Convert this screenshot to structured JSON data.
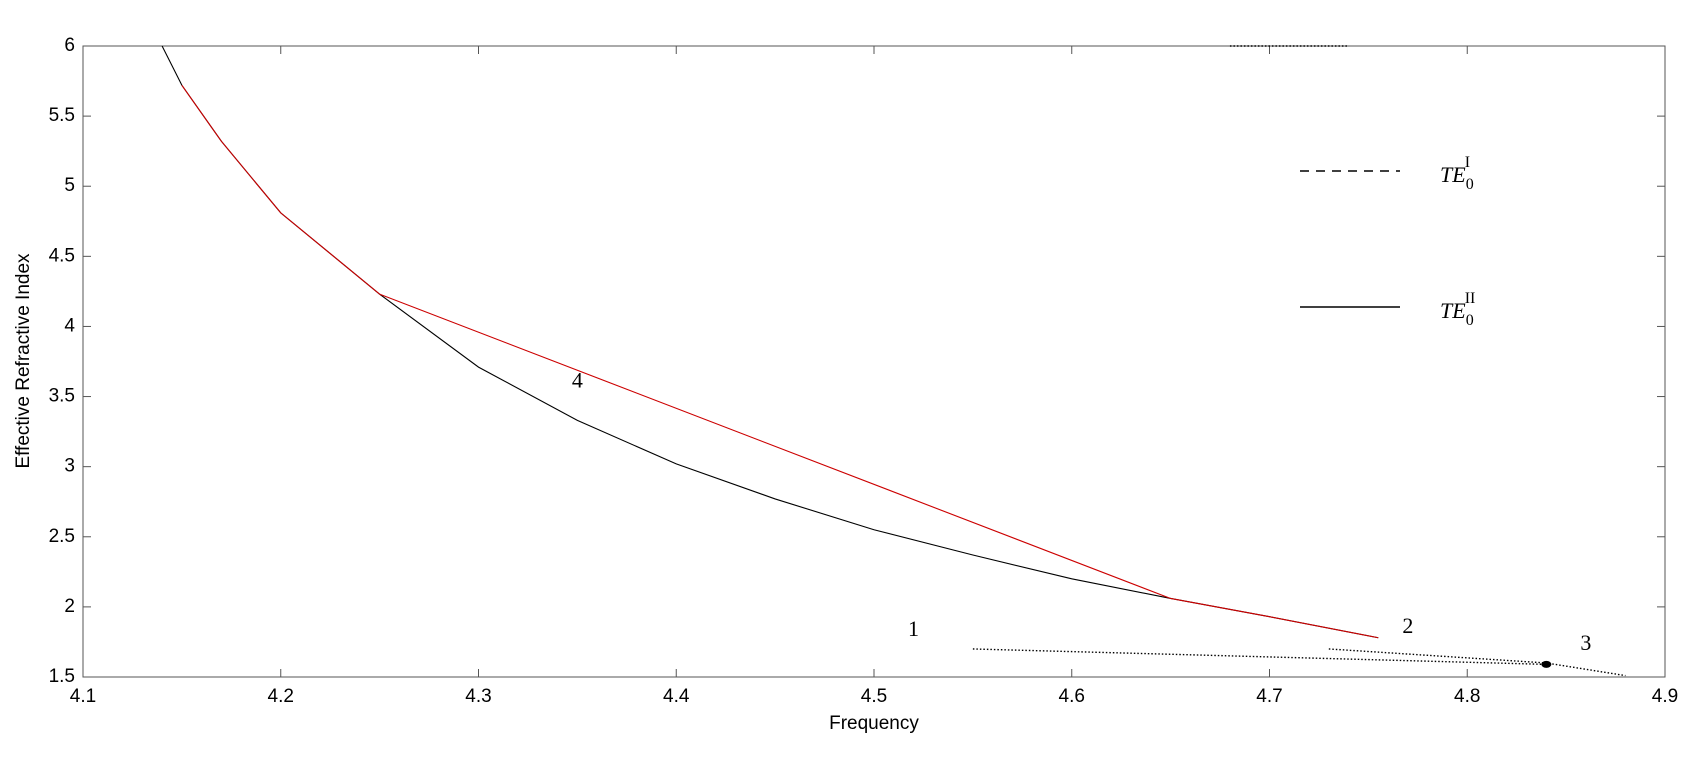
{
  "chart_data": {
    "type": "line",
    "x_label": "Frequency",
    "y_label": "Effective Refractive Index",
    "xlim": [
      4.1,
      4.9
    ],
    "ylim": [
      1.5,
      6
    ],
    "xticks": [
      4.1,
      4.2,
      4.3,
      4.4,
      4.5,
      4.6,
      4.7,
      4.8,
      4.9
    ],
    "yticks": [
      1.5,
      2,
      2.5,
      3,
      3.5,
      4,
      4.5,
      5,
      5.5,
      6
    ],
    "grid": false,
    "series": [
      {
        "name": "TE",
        "sub": "0",
        "sup": "I",
        "color": "#000000",
        "style": "dashed",
        "x": [
          4.55,
          4.84,
          null,
          4.73,
          4.84,
          4.88,
          null,
          4.68,
          4.74
        ],
        "values": [
          1.7,
          1.59,
          null,
          1.7,
          1.6,
          1.51,
          null,
          6,
          6
        ]
      },
      {
        "name": "TE",
        "sub": "0",
        "sup": "II",
        "color": "#000000",
        "style": "solid",
        "x": [
          4.14,
          4.15,
          4.17,
          4.2,
          4.25,
          4.3,
          4.35,
          4.4,
          4.45,
          4.5,
          4.55,
          4.6,
          4.65,
          4.7,
          4.755
        ],
        "values": [
          6.0,
          5.72,
          5.32,
          4.81,
          4.23,
          3.71,
          3.33,
          3.02,
          2.77,
          2.55,
          2.37,
          2.2,
          2.06,
          1.93,
          1.78
        ]
      },
      {
        "color": "#cc0000",
        "style": "solid",
        "x": [
          4.15,
          4.17,
          4.2,
          4.25,
          4.65,
          4.7,
          4.755
        ],
        "values": [
          5.72,
          5.32,
          4.81,
          4.23,
          2.06,
          1.93,
          1.78
        ]
      }
    ],
    "points": [
      {
        "x": 4.84,
        "y": 1.59
      }
    ],
    "annotations": [
      {
        "text": "1",
        "x": 4.52,
        "y": 1.83
      },
      {
        "text": "2",
        "x": 4.77,
        "y": 1.85
      },
      {
        "text": "3",
        "x": 4.86,
        "y": 1.73
      },
      {
        "text": "4",
        "x": 4.35,
        "y": 3.6
      }
    ]
  }
}
